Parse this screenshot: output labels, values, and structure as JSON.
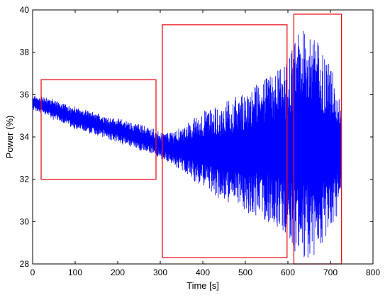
{
  "chart_data": {
    "type": "line",
    "title": "",
    "xlabel": "Time   [s]",
    "ylabel": "Power  (%)",
    "xlim": [
      0,
      800
    ],
    "ylim": [
      28,
      40
    ],
    "x_ticks": [
      0,
      100,
      200,
      300,
      400,
      500,
      600,
      700,
      800
    ],
    "y_ticks": [
      28,
      30,
      32,
      34,
      36,
      38,
      40
    ],
    "grid": false,
    "legend": "none",
    "colors": {
      "signal": "#0000ff",
      "box": "#e8141e"
    },
    "series": [
      {
        "x": [
          0,
          20,
          50,
          100,
          150,
          200,
          250,
          280,
          300,
          320,
          350,
          400,
          450,
          500,
          550,
          580,
          600,
          620,
          640,
          660,
          680,
          700,
          720,
          725
        ],
        "center": [
          35.6,
          35.5,
          35.3,
          34.9,
          34.6,
          34.3,
          34.0,
          33.8,
          33.6,
          33.5,
          33.4,
          33.4,
          33.3,
          33.3,
          33.4,
          33.4,
          33.4,
          33.6,
          33.7,
          33.6,
          33.5,
          33.4,
          33.4,
          33.4
        ],
        "half_amplitude": [
          0.3,
          0.4,
          0.45,
          0.5,
          0.5,
          0.55,
          0.6,
          0.6,
          0.6,
          0.7,
          1.0,
          1.8,
          2.3,
          2.8,
          3.4,
          3.8,
          4.2,
          5.2,
          5.5,
          5.3,
          4.7,
          4.0,
          3.0,
          2.0
        ]
      }
    ],
    "annotations": [
      {
        "type": "rect",
        "x": [
          20,
          290
        ],
        "y": [
          32.0,
          36.7
        ],
        "color": "#e8141e"
      },
      {
        "type": "rect",
        "x": [
          305,
          598
        ],
        "y": [
          28.3,
          39.3
        ],
        "color": "#e8141e"
      },
      {
        "type": "rect",
        "x": [
          614,
          726
        ],
        "y": [
          28.0,
          39.8
        ],
        "color": "#e8141e"
      }
    ]
  }
}
